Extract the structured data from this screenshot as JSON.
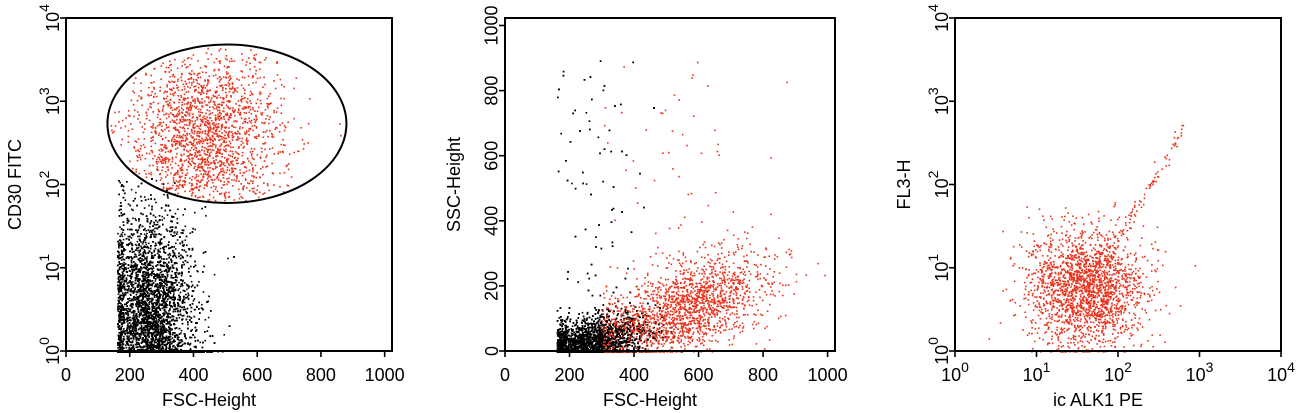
{
  "chart_data": [
    {
      "type": "scatter",
      "x_scale": "linear",
      "y_scale": "log",
      "xlim": [
        0,
        1023
      ],
      "ylim": [
        1,
        10000
      ],
      "xlabel": "FSC-Height",
      "ylabel": "CD30 FITC",
      "x_ticks": [
        {
          "value": 0,
          "label": "0"
        },
        {
          "value": 200,
          "label": "200"
        },
        {
          "value": 400,
          "label": "400"
        },
        {
          "value": 600,
          "label": "600"
        },
        {
          "value": 800,
          "label": "800"
        },
        {
          "value": 1000,
          "label": "1000"
        }
      ],
      "y_ticks": [
        {
          "value": 1,
          "base": "10",
          "exp": "0"
        },
        {
          "value": 10,
          "base": "10",
          "exp": "1"
        },
        {
          "value": 100,
          "base": "10",
          "exp": "2"
        },
        {
          "value": 1000,
          "base": "10",
          "exp": "3"
        },
        {
          "value": 10000,
          "base": "10",
          "exp": "4"
        }
      ],
      "gate": {
        "shape": "ellipse",
        "x_range": [
          130,
          880
        ],
        "y_range": [
          60,
          4800
        ]
      },
      "populations": [
        {
          "color": "#000000",
          "x_center": 260,
          "x_spread": 70,
          "x_min": 160,
          "y_log_center": 0.25,
          "y_log_spread": 0.7,
          "count": 9000
        },
        {
          "color": "#e8321c",
          "x_center": 430,
          "x_spread": 120,
          "y_log_center": 2.55,
          "y_log_spread": 0.55,
          "count": 2200
        }
      ]
    },
    {
      "type": "scatter",
      "x_scale": "linear",
      "y_scale": "linear",
      "xlim": [
        0,
        1023
      ],
      "ylim": [
        0,
        1023
      ],
      "xlabel": "FSC-Height",
      "ylabel": "SSC-Height",
      "x_ticks": [
        {
          "value": 0,
          "label": "0"
        },
        {
          "value": 200,
          "label": "200"
        },
        {
          "value": 400,
          "label": "400"
        },
        {
          "value": 600,
          "label": "600"
        },
        {
          "value": 800,
          "label": "800"
        },
        {
          "value": 1000,
          "label": "1000"
        }
      ],
      "y_ticks": [
        {
          "value": 0,
          "label": "0"
        },
        {
          "value": 200,
          "label": "200"
        },
        {
          "value": 400,
          "label": "400"
        },
        {
          "value": 600,
          "label": "600"
        },
        {
          "value": 800,
          "label": "800"
        },
        {
          "value": 1000,
          "label": "1000"
        }
      ],
      "populations": [
        {
          "color": "#000000",
          "x_center": 260,
          "x_spread": 90,
          "x_min": 160,
          "y_slope": 0.22,
          "y_spread": 40,
          "count": 6000
        },
        {
          "color": "#e8321c",
          "x_center": 560,
          "x_spread": 130,
          "x_min": 300,
          "y_slope": 0.33,
          "y_spread": 70,
          "count": 1800
        }
      ]
    },
    {
      "type": "scatter",
      "x_scale": "log",
      "y_scale": "log",
      "xlim": [
        1,
        10000
      ],
      "ylim": [
        1,
        10000
      ],
      "xlabel": "ic ALK1 PE",
      "ylabel": "FL3-H",
      "x_ticks": [
        {
          "value": 1,
          "base": "10",
          "exp": "0"
        },
        {
          "value": 10,
          "base": "10",
          "exp": "1"
        },
        {
          "value": 100,
          "base": "10",
          "exp": "2"
        },
        {
          "value": 1000,
          "base": "10",
          "exp": "3"
        },
        {
          "value": 10000,
          "base": "10",
          "exp": "4"
        }
      ],
      "y_ticks": [
        {
          "value": 1,
          "base": "10",
          "exp": "0"
        },
        {
          "value": 10,
          "base": "10",
          "exp": "1"
        },
        {
          "value": 100,
          "base": "10",
          "exp": "2"
        },
        {
          "value": 1000,
          "base": "10",
          "exp": "3"
        },
        {
          "value": 10000,
          "base": "10",
          "exp": "4"
        }
      ],
      "populations": [
        {
          "color": "#e8321c",
          "x_log_center": 1.6,
          "x_log_spread": 0.35,
          "y_log_center": 0.75,
          "y_log_spread": 0.35,
          "count": 2000
        },
        {
          "color": "#e8321c",
          "x_log_center": 2.3,
          "x_log_spread": 0.3,
          "y_log_center": 1.8,
          "y_log_spread": 0.35,
          "count": 90,
          "diagonal": true
        }
      ]
    }
  ]
}
